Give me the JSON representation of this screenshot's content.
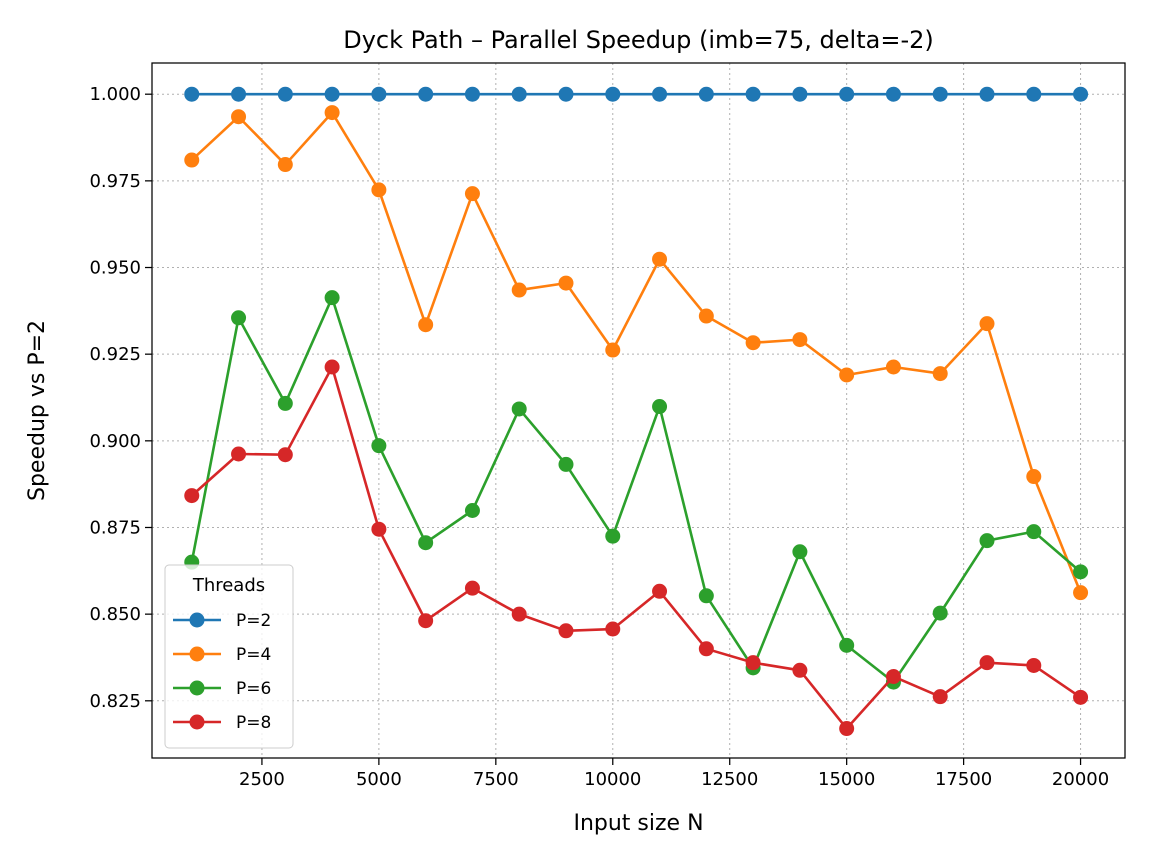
{
  "chart_data": {
    "type": "line",
    "title": "Dyck Path – Parallel Speedup (imb=75, delta=-2)",
    "xlabel": "Input size N",
    "ylabel": "Speedup vs P=2",
    "xlim": [
      150,
      20950
    ],
    "ylim": [
      0.8085,
      1.009
    ],
    "xticks": [
      2500,
      5000,
      7500,
      10000,
      12500,
      15000,
      17500,
      20000
    ],
    "xtick_labels": [
      "2500",
      "5000",
      "7500",
      "10000",
      "12500",
      "15000",
      "17500",
      "20000"
    ],
    "yticks": [
      0.825,
      0.85,
      0.875,
      0.9,
      0.925,
      0.95,
      0.975,
      1.0
    ],
    "ytick_labels": [
      "0.825",
      "0.850",
      "0.875",
      "0.900",
      "0.925",
      "0.950",
      "0.975",
      "1.000"
    ],
    "grid": true,
    "legend_title": "Threads",
    "legend_position": "lower-left",
    "x": [
      1000,
      2000,
      3000,
      4000,
      5000,
      6000,
      7000,
      8000,
      9000,
      10000,
      11000,
      12000,
      13000,
      14000,
      15000,
      16000,
      17000,
      18000,
      19000,
      20000
    ],
    "series": [
      {
        "name": "P=2",
        "color": "#1f77b4",
        "values": [
          1.0,
          1.0,
          1.0,
          1.0,
          1.0,
          1.0,
          1.0,
          1.0,
          1.0,
          1.0,
          1.0,
          1.0,
          1.0,
          1.0,
          1.0,
          1.0,
          1.0,
          1.0,
          1.0,
          1.0
        ]
      },
      {
        "name": "P=4",
        "color": "#ff7f0e",
        "values": [
          0.981,
          0.9935,
          0.9797,
          0.9947,
          0.9724,
          0.9335,
          0.9713,
          0.9435,
          0.9455,
          0.9262,
          0.9524,
          0.936,
          0.9283,
          0.9292,
          0.919,
          0.9213,
          0.9194,
          0.9338,
          0.8897,
          0.8562
        ]
      },
      {
        "name": "P=6",
        "color": "#2ca02c",
        "values": [
          0.865,
          0.9355,
          0.9108,
          0.9413,
          0.8986,
          0.8706,
          0.8799,
          0.9092,
          0.8932,
          0.8725,
          0.9099,
          0.8553,
          0.8345,
          0.868,
          0.841,
          0.8304,
          0.8503,
          0.8712,
          0.8738,
          0.8622
        ]
      },
      {
        "name": "P=8",
        "color": "#d62728",
        "values": [
          0.8842,
          0.8962,
          0.896,
          0.9213,
          0.8745,
          0.8481,
          0.8575,
          0.85,
          0.8452,
          0.8457,
          0.8566,
          0.84,
          0.836,
          0.8338,
          0.817,
          0.832,
          0.8262,
          0.836,
          0.8352,
          0.826
        ]
      }
    ]
  }
}
